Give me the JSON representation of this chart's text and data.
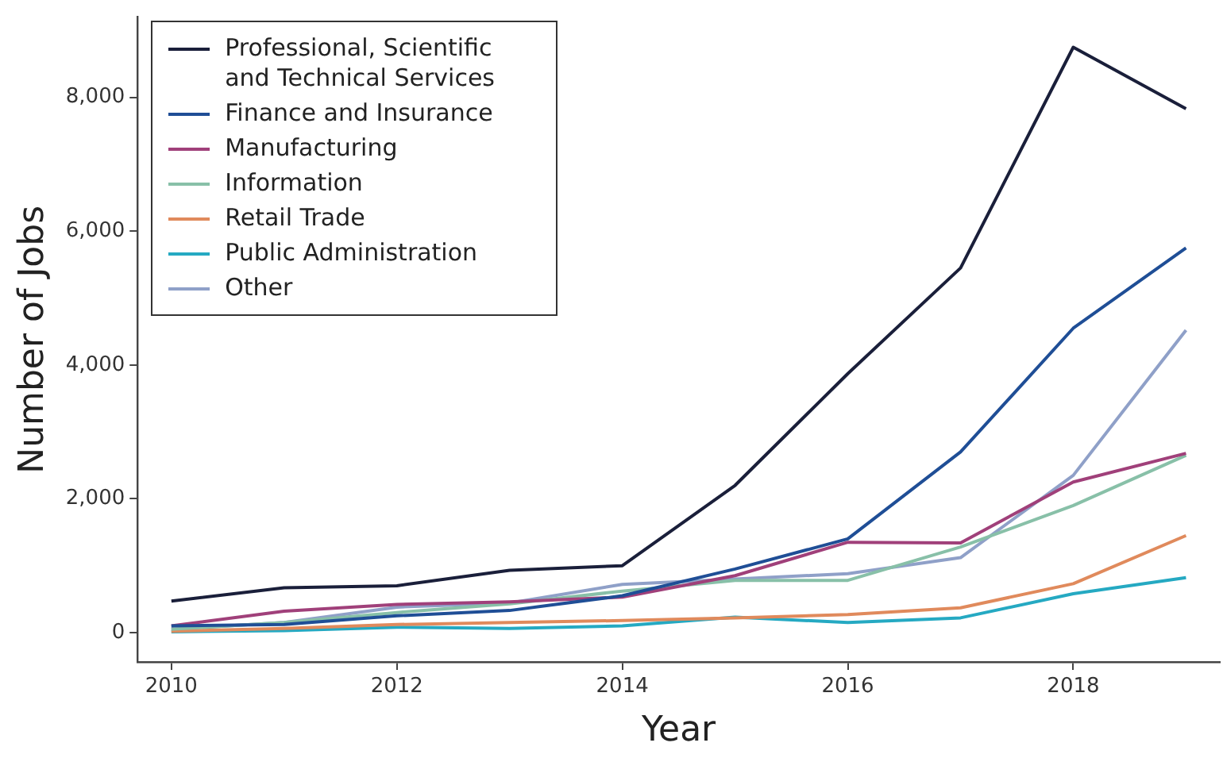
{
  "chart_data": {
    "type": "line",
    "xlabel": "Year",
    "ylabel": "Number of Jobs",
    "x": [
      2010,
      2011,
      2012,
      2013,
      2014,
      2015,
      2016,
      2017,
      2018,
      2019
    ],
    "series": [
      {
        "name": "Professional, Scientific and Technical Services",
        "color": "#1a1f3a",
        "values": [
          470,
          670,
          700,
          930,
          1000,
          2200,
          3870,
          5450,
          8750,
          7830
        ]
      },
      {
        "name": "Finance and Insurance",
        "color": "#1f4e96",
        "values": [
          100,
          120,
          250,
          330,
          550,
          950,
          1400,
          2700,
          4550,
          5750
        ]
      },
      {
        "name": "Manufacturing",
        "color": "#a0407a",
        "values": [
          100,
          320,
          420,
          460,
          530,
          850,
          1350,
          1340,
          2250,
          2680
        ]
      },
      {
        "name": "Information",
        "color": "#88c0a8",
        "values": [
          50,
          150,
          300,
          430,
          620,
          780,
          780,
          1280,
          1900,
          2650
        ]
      },
      {
        "name": "Retail Trade",
        "color": "#e08a5c",
        "values": [
          20,
          60,
          120,
          150,
          180,
          220,
          270,
          370,
          730,
          1450
        ]
      },
      {
        "name": "Public Administration",
        "color": "#25a9c2",
        "values": [
          10,
          30,
          80,
          60,
          100,
          230,
          150,
          220,
          580,
          820
        ]
      },
      {
        "name": "Other",
        "color": "#8fa0c8",
        "values": [
          50,
          150,
          380,
          440,
          720,
          800,
          880,
          1120,
          2350,
          4520
        ]
      }
    ],
    "xlim": [
      2009.7,
      2019.3
    ],
    "xticks": [
      2010,
      2012,
      2014,
      2016,
      2018
    ],
    "ylim": [
      -440,
      9200
    ],
    "yticks": [
      0,
      {
        "value": 2000,
        "label": "2,000"
      },
      {
        "value": 4000,
        "label": "4,000"
      },
      {
        "value": 6000,
        "label": "6,000"
      },
      {
        "value": 8000,
        "label": "8,000"
      }
    ],
    "grid": false,
    "legend": "top left",
    "marker": "none",
    "line_style": "solid"
  }
}
